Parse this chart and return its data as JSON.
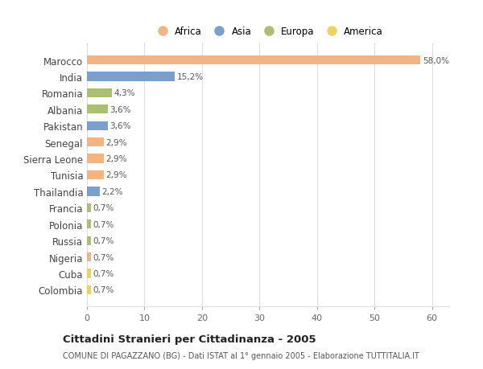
{
  "countries": [
    "Marocco",
    "India",
    "Romania",
    "Albania",
    "Pakistan",
    "Senegal",
    "Sierra Leone",
    "Tunisia",
    "Thailandia",
    "Francia",
    "Polonia",
    "Russia",
    "Nigeria",
    "Cuba",
    "Colombia"
  ],
  "values": [
    58.0,
    15.2,
    4.3,
    3.6,
    3.6,
    2.9,
    2.9,
    2.9,
    2.2,
    0.7,
    0.7,
    0.7,
    0.7,
    0.7,
    0.7
  ],
  "labels": [
    "58,0%",
    "15,2%",
    "4,3%",
    "3,6%",
    "3,6%",
    "2,9%",
    "2,9%",
    "2,9%",
    "2,2%",
    "0,7%",
    "0,7%",
    "0,7%",
    "0,7%",
    "0,7%",
    "0,7%"
  ],
  "continents": [
    "Africa",
    "Asia",
    "Europa",
    "Europa",
    "Asia",
    "Africa",
    "Africa",
    "Africa",
    "Asia",
    "Europa",
    "Europa",
    "Europa",
    "Africa",
    "America",
    "America"
  ],
  "colors": {
    "Africa": "#F2B482",
    "Asia": "#7B9FCC",
    "Europa": "#AABF72",
    "America": "#F0D060"
  },
  "legend_order": [
    "Africa",
    "Asia",
    "Europa",
    "America"
  ],
  "legend_colors": [
    "#F2B482",
    "#7B9FCC",
    "#AABF72",
    "#F0D060"
  ],
  "xlim": [
    0,
    63
  ],
  "xticks": [
    0,
    10,
    20,
    30,
    40,
    50,
    60
  ],
  "title": "Cittadini Stranieri per Cittadinanza - 2005",
  "subtitle": "COMUNE DI PAGAZZANO (BG) - Dati ISTAT al 1° gennaio 2005 - Elaborazione TUTTITALIA.IT",
  "bg_color": "#ffffff",
  "plot_bg_color": "#ffffff",
  "grid_color": "#dddddd",
  "bar_height": 0.55
}
